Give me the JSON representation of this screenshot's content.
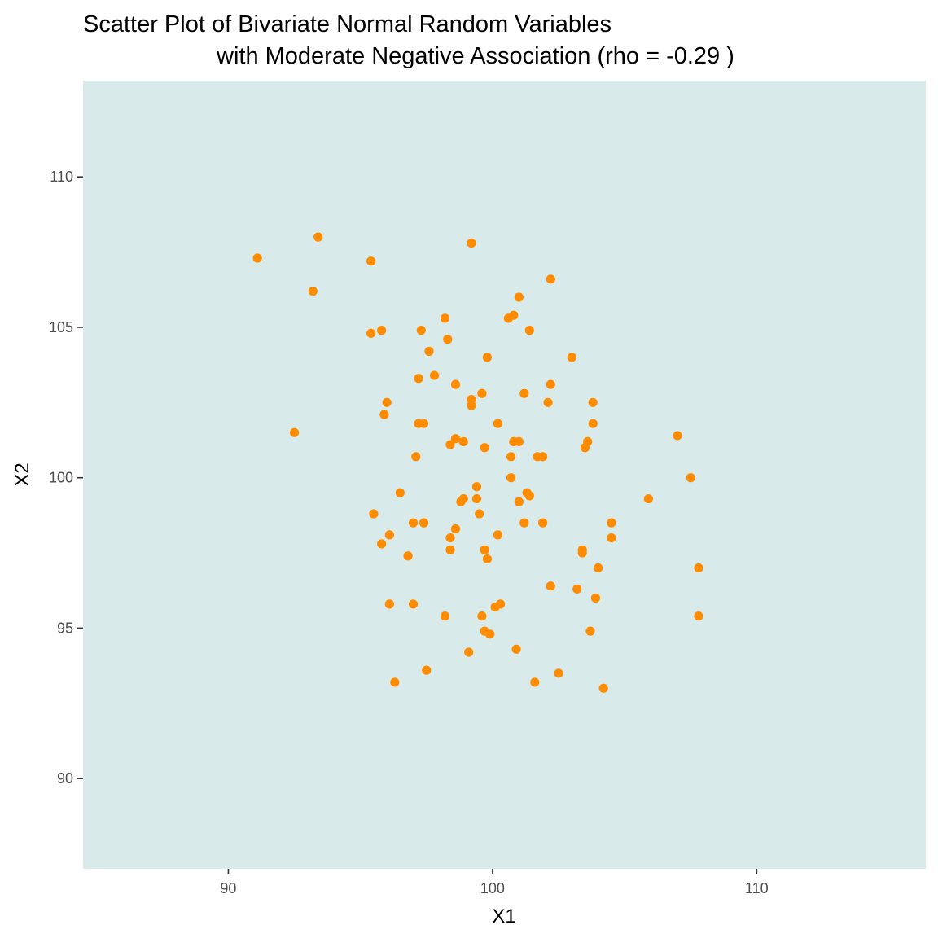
{
  "chart_data": {
    "type": "scatter",
    "title": [
      "Scatter Plot of Bivariate Normal Random Variables",
      "with Moderate Negative Association (rho =  -0.29 )"
    ],
    "xlabel": "X1",
    "ylabel": "X2",
    "xlim": [
      84.5,
      116.4
    ],
    "ylim": [
      87.0,
      113.2
    ],
    "x_ticks": [
      90,
      100,
      110
    ],
    "y_ticks": [
      90,
      95,
      100,
      105,
      110
    ],
    "x_tick_labels": [
      "90",
      "100",
      "110"
    ],
    "y_tick_labels": [
      "90",
      "95",
      "100",
      "105",
      "110"
    ],
    "grid": false,
    "legend": "none",
    "colors": {
      "panel": "#d9eaea",
      "point": "#ff8c00",
      "tick": "#333333"
    },
    "points": [
      {
        "x": 91.1,
        "y": 107.3
      },
      {
        "x": 93.4,
        "y": 108.0
      },
      {
        "x": 93.2,
        "y": 106.2
      },
      {
        "x": 95.4,
        "y": 107.2
      },
      {
        "x": 99.2,
        "y": 107.8
      },
      {
        "x": 102.2,
        "y": 106.6
      },
      {
        "x": 101.0,
        "y": 106.0
      },
      {
        "x": 98.2,
        "y": 105.3
      },
      {
        "x": 100.6,
        "y": 105.3
      },
      {
        "x": 100.8,
        "y": 105.4
      },
      {
        "x": 95.4,
        "y": 104.8
      },
      {
        "x": 95.8,
        "y": 104.9
      },
      {
        "x": 97.3,
        "y": 104.9
      },
      {
        "x": 101.4,
        "y": 104.9
      },
      {
        "x": 98.3,
        "y": 104.6
      },
      {
        "x": 97.6,
        "y": 104.2
      },
      {
        "x": 99.8,
        "y": 104.0
      },
      {
        "x": 103.0,
        "y": 104.0
      },
      {
        "x": 97.2,
        "y": 103.3
      },
      {
        "x": 97.8,
        "y": 103.4
      },
      {
        "x": 98.6,
        "y": 103.1
      },
      {
        "x": 102.2,
        "y": 103.1
      },
      {
        "x": 99.6,
        "y": 102.8
      },
      {
        "x": 101.2,
        "y": 102.8
      },
      {
        "x": 99.2,
        "y": 102.6
      },
      {
        "x": 99.2,
        "y": 102.4
      },
      {
        "x": 96.0,
        "y": 102.5
      },
      {
        "x": 102.1,
        "y": 102.5
      },
      {
        "x": 103.8,
        "y": 102.5
      },
      {
        "x": 95.9,
        "y": 102.1
      },
      {
        "x": 97.2,
        "y": 101.8
      },
      {
        "x": 97.4,
        "y": 101.8
      },
      {
        "x": 100.2,
        "y": 101.8
      },
      {
        "x": 103.8,
        "y": 101.8
      },
      {
        "x": 92.5,
        "y": 101.5
      },
      {
        "x": 107.0,
        "y": 101.4
      },
      {
        "x": 98.6,
        "y": 101.3
      },
      {
        "x": 98.9,
        "y": 101.2
      },
      {
        "x": 100.8,
        "y": 101.2
      },
      {
        "x": 101.0,
        "y": 101.2
      },
      {
        "x": 103.6,
        "y": 101.2
      },
      {
        "x": 98.4,
        "y": 101.1
      },
      {
        "x": 99.7,
        "y": 101.0
      },
      {
        "x": 103.5,
        "y": 101.0
      },
      {
        "x": 97.1,
        "y": 100.7
      },
      {
        "x": 100.7,
        "y": 100.7
      },
      {
        "x": 101.7,
        "y": 100.7
      },
      {
        "x": 101.9,
        "y": 100.7
      },
      {
        "x": 100.7,
        "y": 100.0
      },
      {
        "x": 107.5,
        "y": 100.0
      },
      {
        "x": 99.4,
        "y": 99.7
      },
      {
        "x": 96.5,
        "y": 99.5
      },
      {
        "x": 101.3,
        "y": 99.5
      },
      {
        "x": 101.4,
        "y": 99.4
      },
      {
        "x": 98.9,
        "y": 99.3
      },
      {
        "x": 99.4,
        "y": 99.3
      },
      {
        "x": 105.9,
        "y": 99.3
      },
      {
        "x": 98.8,
        "y": 99.2
      },
      {
        "x": 101.0,
        "y": 99.2
      },
      {
        "x": 99.5,
        "y": 98.8
      },
      {
        "x": 95.5,
        "y": 98.8
      },
      {
        "x": 97.0,
        "y": 98.5
      },
      {
        "x": 97.4,
        "y": 98.5
      },
      {
        "x": 101.2,
        "y": 98.5
      },
      {
        "x": 101.9,
        "y": 98.5
      },
      {
        "x": 104.5,
        "y": 98.5
      },
      {
        "x": 98.6,
        "y": 98.3
      },
      {
        "x": 100.2,
        "y": 98.1
      },
      {
        "x": 96.1,
        "y": 98.1
      },
      {
        "x": 98.4,
        "y": 98.0
      },
      {
        "x": 104.5,
        "y": 98.0
      },
      {
        "x": 95.8,
        "y": 97.8
      },
      {
        "x": 99.7,
        "y": 97.6
      },
      {
        "x": 98.4,
        "y": 97.6
      },
      {
        "x": 103.4,
        "y": 97.6
      },
      {
        "x": 103.4,
        "y": 97.5
      },
      {
        "x": 96.8,
        "y": 97.4
      },
      {
        "x": 99.8,
        "y": 97.3
      },
      {
        "x": 104.0,
        "y": 97.0
      },
      {
        "x": 107.8,
        "y": 97.0
      },
      {
        "x": 102.2,
        "y": 96.4
      },
      {
        "x": 103.2,
        "y": 96.3
      },
      {
        "x": 103.9,
        "y": 96.0
      },
      {
        "x": 96.1,
        "y": 95.8
      },
      {
        "x": 97.0,
        "y": 95.8
      },
      {
        "x": 100.1,
        "y": 95.7
      },
      {
        "x": 100.3,
        "y": 95.8
      },
      {
        "x": 98.2,
        "y": 95.4
      },
      {
        "x": 99.6,
        "y": 95.4
      },
      {
        "x": 107.8,
        "y": 95.4
      },
      {
        "x": 99.7,
        "y": 94.9
      },
      {
        "x": 99.9,
        "y": 94.8
      },
      {
        "x": 103.7,
        "y": 94.9
      },
      {
        "x": 100.9,
        "y": 94.3
      },
      {
        "x": 99.1,
        "y": 94.2
      },
      {
        "x": 97.5,
        "y": 93.6
      },
      {
        "x": 102.5,
        "y": 93.5
      },
      {
        "x": 96.3,
        "y": 93.2
      },
      {
        "x": 101.6,
        "y": 93.2
      },
      {
        "x": 104.2,
        "y": 93.0
      }
    ]
  }
}
